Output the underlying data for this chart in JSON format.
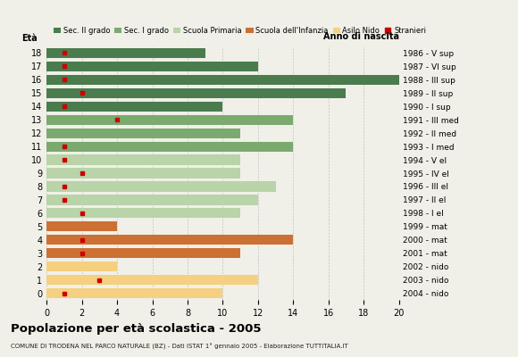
{
  "ages": [
    18,
    17,
    16,
    15,
    14,
    13,
    12,
    11,
    10,
    9,
    8,
    7,
    6,
    5,
    4,
    3,
    2,
    1,
    0
  ],
  "anno_nascita": [
    "1986 - V sup",
    "1987 - VI sup",
    "1988 - III sup",
    "1989 - II sup",
    "1990 - I sup",
    "1991 - III med",
    "1992 - II med",
    "1993 - I med",
    "1994 - V el",
    "1995 - IV el",
    "1996 - III el",
    "1997 - II el",
    "1998 - I el",
    "1999 - mat",
    "2000 - mat",
    "2001 - mat",
    "2002 - nido",
    "2003 - nido",
    "2004 - nido"
  ],
  "bar_values": [
    9,
    12,
    20,
    17,
    10,
    14,
    11,
    14,
    11,
    11,
    13,
    12,
    11,
    4,
    14,
    11,
    4,
    12,
    10
  ],
  "bar_colors": [
    "#4a7c4e",
    "#4a7c4e",
    "#4a7c4e",
    "#4a7c4e",
    "#4a7c4e",
    "#7aaa6e",
    "#7aaa6e",
    "#7aaa6e",
    "#b8d4a8",
    "#b8d4a8",
    "#b8d4a8",
    "#b8d4a8",
    "#b8d4a8",
    "#cc7033",
    "#cc7033",
    "#cc7033",
    "#f5d080",
    "#f5d080",
    "#f5d080"
  ],
  "stranieri_values": [
    1,
    1,
    1,
    2,
    1,
    4,
    0,
    1,
    1,
    2,
    1,
    1,
    2,
    0,
    2,
    2,
    0,
    3,
    1
  ],
  "title": "Popolazione per età scolastica - 2005",
  "subtitle": "COMUNE DI TRODENA NEL PARCO NATURALE (BZ) - Dati ISTAT 1° gennaio 2005 - Elaborazione TUTTITALIA.IT",
  "legend_labels": [
    "Sec. II grado",
    "Sec. I grado",
    "Scuola Primaria",
    "Scuola dell'Infanzia",
    "Asilo Nido",
    "Stranieri"
  ],
  "legend_colors": [
    "#4a7c4e",
    "#7aaa6e",
    "#b8d4a8",
    "#cc7033",
    "#f5d080",
    "#cc0000"
  ],
  "background_color": "#f0f0e8",
  "grid_color": "#bbbbbb",
  "xlim": [
    0,
    20
  ]
}
